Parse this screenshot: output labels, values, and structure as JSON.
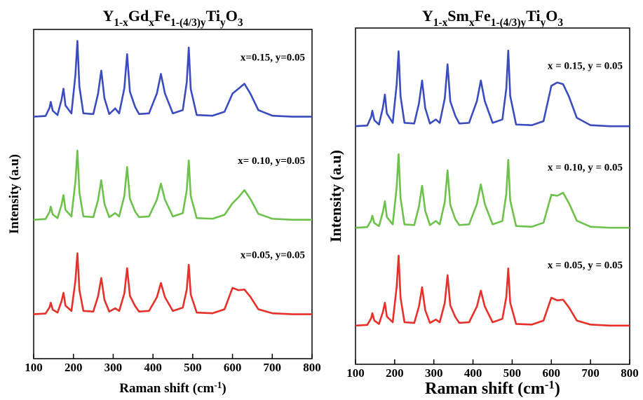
{
  "chart_data": [
    {
      "type": "line",
      "title": [
        "Y",
        "1-x",
        "Gd",
        "x",
        "Fe",
        "1-(4/3)y",
        "Ti",
        "y",
        "O",
        "3"
      ],
      "x_label": [
        "Raman shift (cm",
        "-1",
        ")"
      ],
      "y_label": "Intensity (a.u)",
      "xlim": [
        100,
        800
      ],
      "xticks": [
        100,
        200,
        300,
        400,
        500,
        600,
        700,
        800
      ],
      "ylim": [
        0,
        100
      ],
      "x": [
        100,
        130,
        140,
        143,
        148,
        160,
        170,
        175,
        180,
        195,
        205,
        210,
        215,
        225,
        250,
        262,
        270,
        278,
        290,
        305,
        315,
        328,
        335,
        342,
        355,
        365,
        390,
        410,
        420,
        430,
        450,
        475,
        485,
        490,
        495,
        510,
        550,
        580,
        600,
        615,
        630,
        645,
        665,
        700,
        750,
        800
      ],
      "series": [
        {
          "name": "x=0.15, y=0.05",
          "color": "#3b4cc0",
          "values": [
            73.5,
            73.7,
            76.2,
            78,
            75.3,
            74,
            78.6,
            82,
            76.9,
            74.5,
            86.2,
            96.5,
            82.7,
            74.5,
            74.3,
            80.5,
            87.5,
            79.1,
            74.3,
            76,
            74.5,
            82.1,
            92.5,
            81.1,
            76.5,
            74.3,
            74.5,
            80.6,
            86.5,
            80.6,
            74.5,
            75.5,
            84,
            94.5,
            81.9,
            74,
            73.8,
            75,
            80.5,
            82,
            83.5,
            80.5,
            75.5,
            73.8,
            73.5,
            73.5
          ]
        },
        {
          "name": "x= 0.10, y=0.05",
          "color": "#6cc24a",
          "values": [
            42.2,
            42.4,
            44.6,
            46.2,
            43.8,
            42.7,
            46.7,
            49.7,
            45.2,
            43.2,
            53.8,
            63.2,
            50.6,
            43.2,
            43,
            48.2,
            54.2,
            47,
            43,
            44.2,
            43.2,
            49.4,
            58.2,
            48.6,
            44.7,
            43,
            43.2,
            48.3,
            53.2,
            48.3,
            43.2,
            44.2,
            51.2,
            60.2,
            49.4,
            42.7,
            42.5,
            43.7,
            47.2,
            49,
            51.2,
            48.5,
            44,
            42.5,
            42.2,
            42.2
          ]
        },
        {
          "name": "x=0.05, y=0.05",
          "color": "#e8302a",
          "values": [
            13.5,
            13.7,
            15.6,
            17,
            14.9,
            14,
            17.4,
            20,
            16.1,
            14.5,
            23.7,
            32,
            20.9,
            14.5,
            14.3,
            19,
            24.5,
            17.9,
            14.3,
            15.3,
            14.5,
            19.8,
            27.5,
            19.1,
            16,
            14.3,
            14.5,
            18.7,
            23,
            18.7,
            14.5,
            15.5,
            21,
            28.5,
            19.5,
            14,
            13.8,
            15,
            21.5,
            20.8,
            21,
            18.8,
            15,
            13.8,
            13.5,
            13.5
          ]
        }
      ]
    },
    {
      "type": "line",
      "title": [
        "Y",
        "1-x",
        "Sm",
        "x",
        "Fe",
        "1-(4/3)y",
        "Ti",
        "y",
        "O",
        "3"
      ],
      "x_label": [
        "Raman shift (cm",
        "-1",
        ")"
      ],
      "y_label": "Intensity (a.u)",
      "xlim": [
        100,
        800
      ],
      "xticks": [
        100,
        200,
        300,
        400,
        500,
        600,
        700,
        800
      ],
      "ylim": [
        0,
        100
      ],
      "x": [
        100,
        130,
        140,
        143,
        148,
        160,
        170,
        175,
        180,
        195,
        205,
        210,
        215,
        225,
        250,
        262,
        270,
        278,
        290,
        305,
        315,
        328,
        335,
        342,
        355,
        365,
        390,
        410,
        420,
        430,
        450,
        475,
        485,
        490,
        495,
        510,
        550,
        580,
        600,
        615,
        630,
        645,
        665,
        700,
        750,
        800
      ],
      "series": [
        {
          "name": "x = 0.15, y = 0.05",
          "color": "#3b4cc0",
          "values": [
            70.8,
            71,
            73.6,
            75.4,
            72.6,
            71.3,
            76.4,
            80.2,
            74.6,
            71.8,
            83.1,
            93.1,
            79.7,
            71.8,
            71.6,
            77.6,
            84.4,
            76.2,
            71.6,
            72.8,
            71.8,
            79.1,
            89.2,
            78.2,
            73.8,
            71.6,
            71.8,
            78.3,
            84.4,
            78.3,
            71.8,
            72.8,
            82,
            93.3,
            79.8,
            71.3,
            71.1,
            72.3,
            82.8,
            83.8,
            83.3,
            79.6,
            73.3,
            71.1,
            70.8,
            70.8
          ]
        },
        {
          "name": "x = 0.10, y = 0.05",
          "color": "#6cc24a",
          "values": [
            40.6,
            40.8,
            42.8,
            44.2,
            42,
            41.1,
            45.3,
            48.5,
            43.8,
            41.6,
            52.6,
            62.5,
            49.4,
            41.6,
            41.4,
            46.9,
            53.1,
            45.6,
            41.4,
            42.6,
            41.6,
            48.3,
            57.7,
            47.4,
            43.1,
            41.4,
            41.6,
            47.7,
            53.5,
            47.7,
            41.6,
            42.6,
            50.7,
            60.8,
            48.7,
            41.1,
            40.9,
            42.1,
            50.4,
            50.1,
            51,
            47.9,
            42.7,
            40.9,
            40.6,
            40.6
          ]
        },
        {
          "name": "x = 0.05, y = 0.05",
          "color": "#e8302a",
          "values": [
            11.5,
            11.7,
            13.7,
            15.2,
            13,
            12,
            15.6,
            18.3,
            14.2,
            12.5,
            22.9,
            32.3,
            19.8,
            12.5,
            12.3,
            17.2,
            22.9,
            16.1,
            12.3,
            13.3,
            12.5,
            18.3,
            26.5,
            17.5,
            14,
            12.3,
            12.5,
            17.2,
            21.9,
            17.2,
            12.5,
            13.5,
            20,
            28.5,
            18.3,
            12,
            11.8,
            13,
            19.8,
            19,
            19.2,
            16.9,
            13,
            11.8,
            11.5,
            11.5
          ]
        }
      ]
    }
  ]
}
